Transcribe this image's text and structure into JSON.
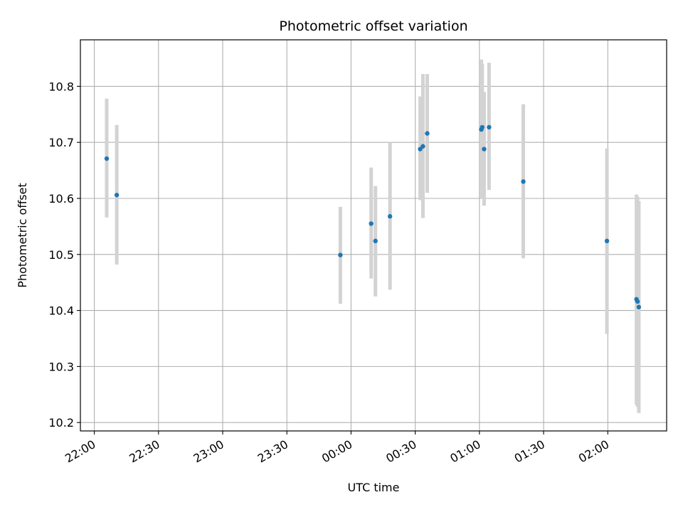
{
  "chart_data": {
    "type": "scatter",
    "title": "Photometric offset variation",
    "xlabel": "UTC time",
    "ylabel": "Photometric offset",
    "x_tick_labels": [
      "22:00",
      "22:30",
      "23:00",
      "23:30",
      "00:00",
      "00:30",
      "01:00",
      "01:30",
      "02:00"
    ],
    "y_tick_labels": [
      "10.2",
      "10.3",
      "10.4",
      "10.5",
      "10.6",
      "10.7",
      "10.8"
    ],
    "y_ticks": [
      10.2,
      10.3,
      10.4,
      10.5,
      10.6,
      10.7,
      10.8
    ],
    "xlim_minutes": [
      -6.5,
      267.5
    ],
    "ylim": [
      10.185,
      10.883
    ],
    "grid": true,
    "marker_color": "#1f77b4",
    "errorbar_color": "#d3d3d3",
    "points": [
      {
        "time": "22:06",
        "minutes": 5.8,
        "y": 10.671,
        "err_low": 10.566,
        "err_high": 10.778
      },
      {
        "time": "22:11",
        "minutes": 10.5,
        "y": 10.606,
        "err_low": 10.482,
        "err_high": 10.731
      },
      {
        "time": "23:55",
        "minutes": 115.0,
        "y": 10.499,
        "err_low": 10.412,
        "err_high": 10.585
      },
      {
        "time": "00:10",
        "minutes": 129.4,
        "y": 10.555,
        "err_low": 10.457,
        "err_high": 10.655
      },
      {
        "time": "00:11",
        "minutes": 131.4,
        "y": 10.524,
        "err_low": 10.425,
        "err_high": 10.622
      },
      {
        "time": "00:18",
        "minutes": 138.2,
        "y": 10.568,
        "err_low": 10.437,
        "err_high": 10.7
      },
      {
        "time": "00:32",
        "minutes": 152.3,
        "y": 10.688,
        "err_low": 10.597,
        "err_high": 10.782
      },
      {
        "time": "00:33",
        "minutes": 153.6,
        "y": 10.693,
        "err_low": 10.565,
        "err_high": 10.822
      },
      {
        "time": "00:35",
        "minutes": 155.6,
        "y": 10.716,
        "err_low": 10.61,
        "err_high": 10.822
      },
      {
        "time": "01:01",
        "minutes": 180.9,
        "y": 10.723,
        "err_low": 10.6,
        "err_high": 10.848
      },
      {
        "time": "01:01",
        "minutes": 181.3,
        "y": 10.727,
        "err_low": 10.62,
        "err_high": 10.84
      },
      {
        "time": "01:02",
        "minutes": 182.2,
        "y": 10.688,
        "err_low": 10.587,
        "err_high": 10.79
      },
      {
        "time": "01:04",
        "minutes": 184.5,
        "y": 10.727,
        "err_low": 10.615,
        "err_high": 10.842
      },
      {
        "time": "01:20",
        "minutes": 200.5,
        "y": 10.63,
        "err_low": 10.493,
        "err_high": 10.768
      },
      {
        "time": "02:00",
        "minutes": 239.6,
        "y": 10.524,
        "err_low": 10.358,
        "err_high": 10.689
      },
      {
        "time": "02:13",
        "minutes": 253.4,
        "y": 10.42,
        "err_low": 10.232,
        "err_high": 10.607
      },
      {
        "time": "02:14",
        "minutes": 253.9,
        "y": 10.416,
        "err_low": 10.228,
        "err_high": 10.603
      },
      {
        "time": "02:14",
        "minutes": 254.5,
        "y": 10.406,
        "err_low": 10.217,
        "err_high": 10.595
      }
    ]
  }
}
